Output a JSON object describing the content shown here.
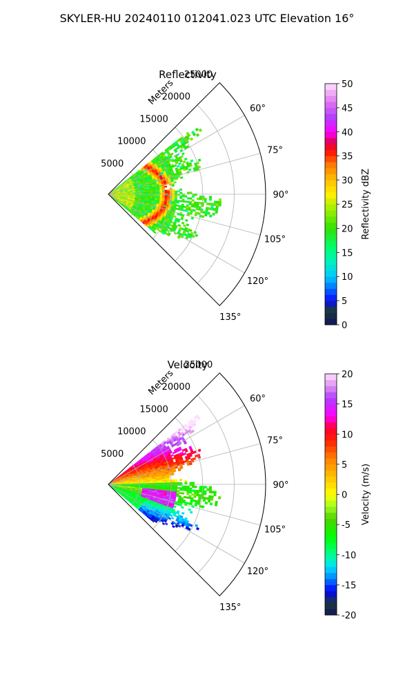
{
  "figure_title": "SKYLER-HU  20240110  012041.023 UTC Elevation 16°",
  "chart_data": [
    {
      "type": "polar-sector",
      "title": "Reflectivity",
      "radial_unit_label": "Meters",
      "range_ticks": [
        5000,
        10000,
        15000,
        20000,
        25000
      ],
      "r_max": 25000,
      "angle_ticks": [
        "60°",
        "75°",
        "90°",
        "105°",
        "120°",
        "135°"
      ],
      "angle_ticks_deg": [
        60,
        75,
        90,
        105,
        120,
        135
      ],
      "theta_range_deg": [
        45,
        135
      ],
      "data_extent": {
        "theta_deg": [
          52,
          130
        ],
        "range_m": [
          0,
          18000
        ]
      },
      "colorbar": {
        "label": "Reflectivity dBZ",
        "min": 0,
        "max": 50,
        "ticks": [
          0,
          5,
          10,
          15,
          20,
          25,
          30,
          35,
          40,
          45,
          50
        ],
        "stops": [
          [
            0,
            "#14145c"
          ],
          [
            3,
            "#1a3a3a"
          ],
          [
            5,
            "#0a0aff"
          ],
          [
            8,
            "#0080ff"
          ],
          [
            10,
            "#00c8ff"
          ],
          [
            13,
            "#00f0c0"
          ],
          [
            16,
            "#00ff70"
          ],
          [
            20,
            "#30e000"
          ],
          [
            24,
            "#a0f000"
          ],
          [
            27,
            "#fff000"
          ],
          [
            30,
            "#ffc000"
          ],
          [
            33,
            "#ff8000"
          ],
          [
            36,
            "#ff1000"
          ],
          [
            38,
            "#e00060"
          ],
          [
            40,
            "#ff00ff"
          ],
          [
            43,
            "#b040ff"
          ],
          [
            46,
            "#e070f0"
          ],
          [
            50,
            "#ffe0ff"
          ]
        ]
      },
      "field_description": "background echo 18-22 dBZ; enhanced 25-35 dBZ band near 8-12 km"
    },
    {
      "type": "polar-sector",
      "title": "Velocity",
      "radial_unit_label": "Meters",
      "range_ticks": [
        5000,
        10000,
        15000,
        20000,
        25000
      ],
      "r_max": 25000,
      "angle_ticks": [
        "60°",
        "75°",
        "90°",
        "105°",
        "120°",
        "135°"
      ],
      "angle_ticks_deg": [
        60,
        75,
        90,
        105,
        120,
        135
      ],
      "theta_range_deg": [
        45,
        135
      ],
      "data_extent": {
        "theta_deg": [
          52,
          130
        ],
        "range_m": [
          0,
          18000
        ]
      },
      "colorbar": {
        "label": "Velocity (m/s)",
        "min": -20,
        "max": 20,
        "ticks": [
          -20,
          -15,
          -10,
          -5,
          0,
          5,
          10,
          15,
          20
        ],
        "stops": [
          [
            -20,
            "#14145c"
          ],
          [
            -18,
            "#1a3a3a"
          ],
          [
            -16,
            "#0000ff"
          ],
          [
            -14,
            "#0080ff"
          ],
          [
            -12,
            "#00e0ff"
          ],
          [
            -10,
            "#00ff90"
          ],
          [
            -7,
            "#00ff00"
          ],
          [
            -4,
            "#50d000"
          ],
          [
            -2,
            "#a0ff20"
          ],
          [
            0,
            "#ffff00"
          ],
          [
            3,
            "#ffc000"
          ],
          [
            6,
            "#ff8000"
          ],
          [
            9,
            "#ff2000"
          ],
          [
            11,
            "#ff0030"
          ],
          [
            13,
            "#ff00ff"
          ],
          [
            16,
            "#b040ff"
          ],
          [
            18,
            "#e090f0"
          ],
          [
            20,
            "#ffe0ff"
          ]
        ]
      },
      "field_description": "positive velocities north of 90°, negative velocities south of 90°"
    }
  ]
}
